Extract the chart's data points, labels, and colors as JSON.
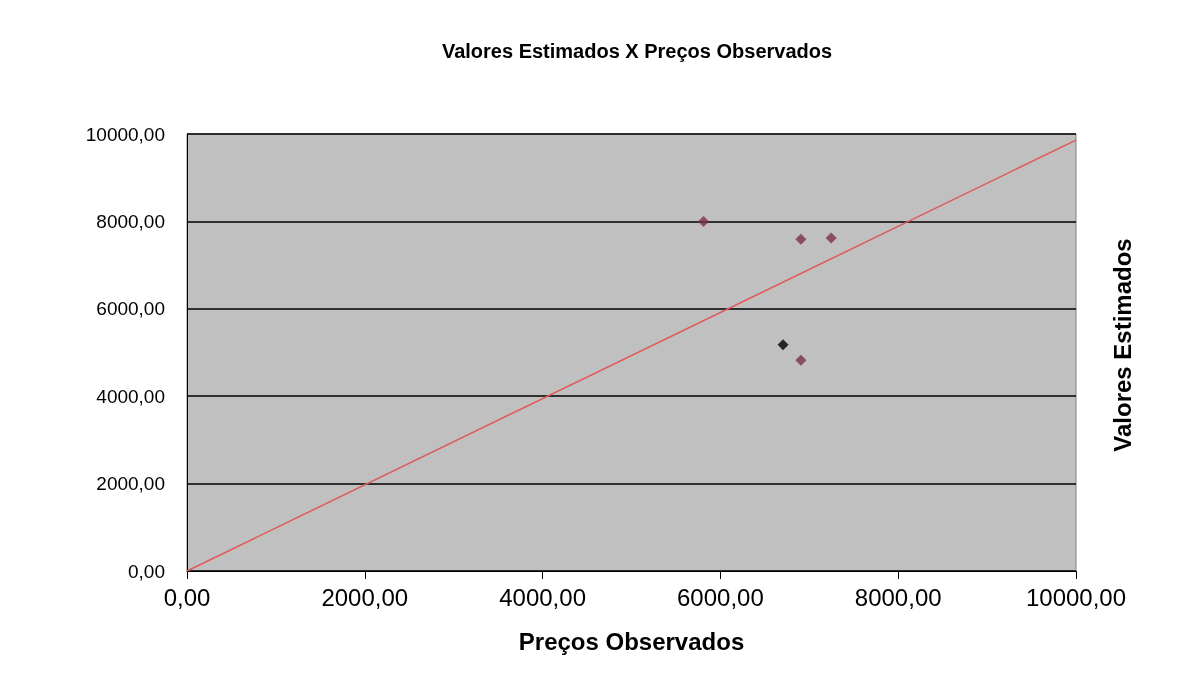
{
  "chart_data": {
    "type": "scatter",
    "title": "Valores Estimados X Preços Observados",
    "xlabel": "Preços Observados",
    "ylabel": "Valores Estimados",
    "xlim": [
      0,
      10000
    ],
    "ylim": [
      0,
      10000
    ],
    "xticks": [
      {
        "value": 0,
        "label": "0,00"
      },
      {
        "value": 2000,
        "label": "2000,00"
      },
      {
        "value": 4000,
        "label": "4000,00"
      },
      {
        "value": 6000,
        "label": "6000,00"
      },
      {
        "value": 8000,
        "label": "8000,00"
      },
      {
        "value": 10000,
        "label": "10000,00"
      }
    ],
    "yticks": [
      {
        "value": 0,
        "label": "0,00"
      },
      {
        "value": 2000,
        "label": "2000,00"
      },
      {
        "value": 4000,
        "label": "4000,00"
      },
      {
        "value": 6000,
        "label": "6000,00"
      },
      {
        "value": 8000,
        "label": "8000,00"
      },
      {
        "value": 10000,
        "label": "10000,00"
      }
    ],
    "grid": "y",
    "marker": "diamond",
    "series": [
      {
        "type": "line",
        "marker": "none",
        "color": "#e05a5a",
        "x": [
          0,
          10000
        ],
        "values": [
          0,
          9860
        ]
      },
      {
        "color": "#7a2e48",
        "x": [
          5810,
          6905,
          7246,
          6705,
          6905
        ],
        "values": [
          8000,
          7590,
          7620,
          5180,
          4820
        ],
        "colors": [
          "#7a2e48",
          "#7a2e48",
          "#7a2e48",
          "#000000",
          "#7a2e48"
        ]
      }
    ]
  }
}
